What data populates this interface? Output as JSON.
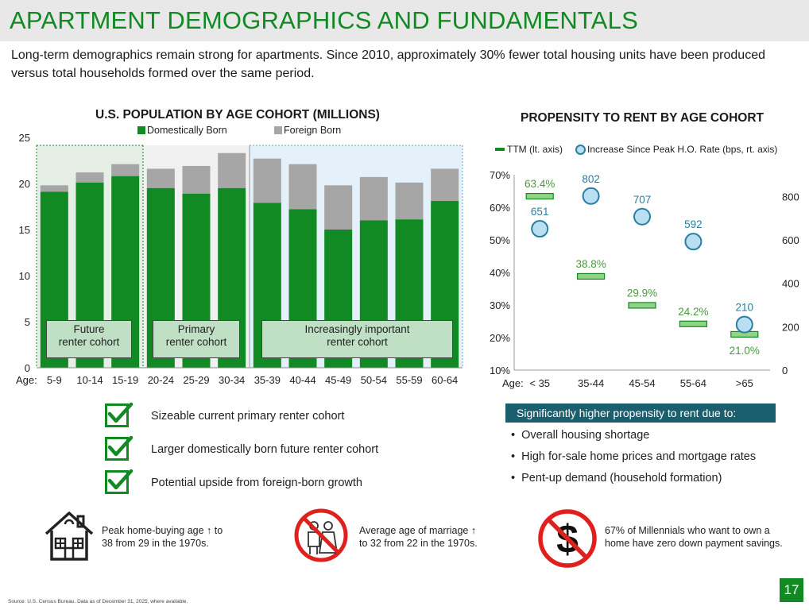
{
  "header": {
    "title": "APARTMENT DEMOGRAPHICS AND FUNDAMENTALS"
  },
  "intro": "Long-term demographics remain strong for apartments. Since 2010, approximately 30% fewer total housing units have been produced versus total households formed over the same period.",
  "colors": {
    "brand_green": "#118a24",
    "domestic": "#118a24",
    "foreign": "#a6a6a6",
    "ttm_fill": "#92d486",
    "ttm_text": "#4a9a3c",
    "circle_fill": "#b8e0f2",
    "circle_stroke": "#2a7ea0",
    "circle_label": "#2a7ea0",
    "header_teal": "#1b5f6f"
  },
  "chart_data": [
    {
      "type": "bar",
      "title": "U.S. POPULATION BY AGE COHORT (MILLIONS)",
      "xlabel": "Age:",
      "ylabel": "",
      "ylim": [
        0,
        25
      ],
      "yticks": [
        "0",
        "5",
        "10",
        "15",
        "20",
        "25"
      ],
      "stacked": true,
      "categories": [
        "5-9",
        "10-14",
        "15-19",
        "20-24",
        "25-29",
        "30-34",
        "35-39",
        "40-44",
        "45-49",
        "50-54",
        "55-59",
        "60-64"
      ],
      "series": [
        {
          "name": "Domestically Born",
          "values": [
            19.1,
            20.1,
            20.8,
            19.5,
            18.9,
            19.5,
            17.9,
            17.2,
            15.0,
            16.0,
            16.1,
            18.1
          ]
        },
        {
          "name": "Foreign Born",
          "values": [
            0.7,
            1.1,
            1.3,
            2.1,
            3.0,
            3.8,
            4.8,
            4.9,
            4.8,
            4.7,
            4.0,
            3.5
          ]
        }
      ],
      "legend": "top",
      "grid": false,
      "cohorts": [
        {
          "label_line1": "Future",
          "label_line2": "renter cohort",
          "categories": [
            "5-9",
            "10-14",
            "15-19"
          ],
          "shade": "#e6efe6"
        },
        {
          "label_line1": "Primary",
          "label_line2": "renter cohort",
          "categories": [
            "20-24",
            "25-29",
            "30-34"
          ],
          "shade": "#f1f1f1"
        },
        {
          "label_line1": "Increasingly important",
          "label_line2": "renter cohort",
          "categories": [
            "35-39",
            "40-44",
            "45-49",
            "50-54",
            "55-59",
            "60-64"
          ],
          "shade": "#e4f1fa"
        }
      ]
    },
    {
      "type": "scatter",
      "title": "PROPENSITY TO RENT BY AGE COHORT",
      "xlabel": "Age:",
      "categories": [
        "< 35",
        "35-44",
        "45-54",
        "55-64",
        ">65"
      ],
      "left_axis": {
        "ylim": [
          10,
          70
        ],
        "ticks": [
          "10%",
          "20%",
          "30%",
          "40%",
          "50%",
          "60%",
          "70%"
        ]
      },
      "right_axis": {
        "ylim": [
          0,
          900
        ],
        "ticks": [
          "0",
          "200",
          "400",
          "600",
          "800"
        ]
      },
      "series": [
        {
          "name": "TTM (lt. axis)",
          "axis": "left",
          "values": [
            63.4,
            38.8,
            29.9,
            24.2,
            21.0
          ],
          "labels": [
            "63.4%",
            "38.8%",
            "29.9%",
            "24.2%",
            "21.0%"
          ]
        },
        {
          "name": "Increase Since Peak H.O. Rate (bps, rt. axis)",
          "axis": "right",
          "values": [
            651,
            802,
            707,
            592,
            210
          ],
          "labels": [
            "651",
            "802",
            "707",
            "592",
            "210"
          ]
        }
      ],
      "legend": "top",
      "grid": false
    }
  ],
  "checklist": [
    "Sizeable current primary renter cohort",
    "Larger domestically born future renter cohort",
    "Potential upside from foreign-born growth"
  ],
  "significance": {
    "header": "Significantly higher propensity to rent due to:",
    "bullets": [
      "Overall housing shortage",
      "High for-sale home prices and mortgage rates",
      "Pent-up demand (household formation)"
    ]
  },
  "facts": [
    {
      "icon": "house-icon",
      "line1": "Peak home-buying age ↑ to",
      "line2": "38 from 29 in the 1970s."
    },
    {
      "icon": "no-marriage-icon",
      "line1": "Average age of marriage ↑",
      "line2": "to 32 from 22 in the 1970s."
    },
    {
      "icon": "no-dollar-icon",
      "line1": "67% of Millennials who want to own a",
      "line2": "home have zero down payment savings."
    }
  ],
  "footnote": "Source:  U.S. Census Bureau. Data as of December 31, 2025, where available.",
  "page_number": "17"
}
